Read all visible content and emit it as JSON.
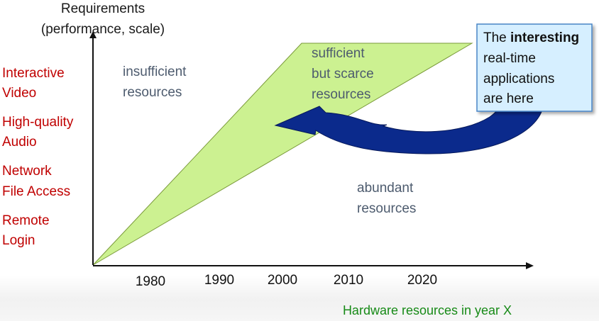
{
  "y_axis_title": [
    "Requirements",
    "(performance, scale)"
  ],
  "x_axis_title": "Hardware resources in year X",
  "years": [
    "1980",
    "1990",
    "2000",
    "2010",
    "2020"
  ],
  "applications": [
    [
      "Interactive",
      "Video"
    ],
    [
      "High-quality",
      "Audio"
    ],
    [
      "Network",
      "File Access"
    ],
    [
      "Remote",
      "Login"
    ]
  ],
  "regions": {
    "insufficient": [
      "insufficient",
      "resources"
    ],
    "sufficient": [
      "sufficient",
      "but scarce",
      "resources"
    ],
    "abundant": [
      "abundant",
      "resources"
    ]
  },
  "callout": {
    "line1_prefix": "The ",
    "line1_bold": "interesting",
    "line2": "real-time",
    "line3": "applications",
    "line4": "are here"
  },
  "colors": {
    "wedge_fill": "#ccf191",
    "arrow_fill": "#0b2a8c",
    "callout_fill": "#d6efff",
    "callout_border": "#4a86c6",
    "app_text": "#c00000",
    "region_text": "#4d5b6e",
    "x_title_text": "#178a17"
  }
}
